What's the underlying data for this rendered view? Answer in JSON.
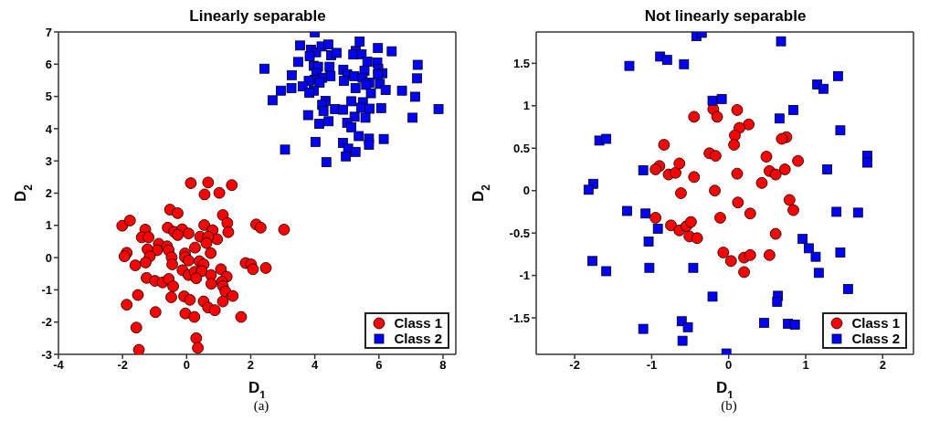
{
  "chart_data": [
    {
      "type": "scatter",
      "title": "Linearly separable",
      "xlabel": "D$_{1}$",
      "ylabel": "D$_{2}$",
      "xlim": [
        -4,
        8.4
      ],
      "ylim": [
        -3,
        7
      ],
      "xticks": [
        -4,
        -2,
        0,
        2,
        4,
        6,
        8
      ],
      "yticks": [
        -3,
        -2,
        -1,
        0,
        1,
        2,
        3,
        4,
        5,
        6,
        7
      ],
      "legend": "bottom right",
      "annotations": [
        "(a)"
      ],
      "series": [
        {
          "name": "Class 1",
          "color": "#ff0000",
          "marker": "circle",
          "x": [
            0.13,
            0.67,
            1.41,
            0.56,
            1.02,
            -0.52,
            -0.28,
            -2.01,
            -1.77,
            1.13,
            1.27,
            1.3,
            -1.29,
            -1.4,
            -1.19,
            -0.59,
            -0.39,
            -0.14,
            0.06,
            -0.28,
            0.55,
            0.81,
            0.95,
            0.42,
            0.67,
            2.17,
            2.31,
            3.04,
            -0.87,
            -0.92,
            -0.61,
            -0.56,
            -0.47,
            -1.22,
            -1.15,
            -1.87,
            -1.94,
            -1.6,
            -1.28,
            -0.45,
            0.26,
            0.62,
            0.75,
            -0.05,
            -0.05,
            0.06,
            0.4,
            0.53,
            -0.13,
            0.06,
            0.25,
            0.47,
            0.3,
            0.76,
            0.77,
            1.07,
            1.25,
            1.1,
            1.13,
            1.21,
            1.44,
            1.84,
            2.01,
            2.07,
            2.47,
            -1.25,
            -0.99,
            -0.75,
            -0.56,
            -0.42,
            -1.52,
            -1.87,
            -0.48,
            -0.08,
            0.1,
            0.53,
            0.67,
            0.88,
            1.13,
            -0.97,
            -0.04,
            0.24,
            1.7,
            -1.57,
            0.3,
            0.35,
            -1.49
          ],
          "values": [
            2.31,
            2.33,
            2.25,
            1.96,
            2.01,
            1.49,
            1.38,
            0.99,
            1.15,
            1.32,
            1.07,
            0.79,
            0.87,
            0.63,
            0.63,
            0.93,
            0.8,
            0.88,
            0.75,
            0.7,
            1.01,
            0.85,
            0.57,
            0.65,
            0.65,
            1.03,
            0.93,
            0.87,
            0.43,
            0.23,
            0.35,
            0.23,
            0.01,
            0.26,
            0.04,
            0.15,
            0.04,
            -0.24,
            -0.15,
            -0.21,
            0.31,
            0.45,
            0.14,
            0.13,
            0.01,
            -0.09,
            -0.11,
            -0.21,
            -0.39,
            -0.54,
            -0.44,
            -0.42,
            -0.64,
            -0.54,
            -0.81,
            -0.36,
            -0.59,
            -0.75,
            -0.88,
            -1.05,
            -1.19,
            -0.17,
            -0.21,
            -0.36,
            -0.32,
            -0.63,
            -0.72,
            -0.77,
            -0.66,
            -0.89,
            -1.16,
            -1.46,
            -1.23,
            -1.2,
            -1.31,
            -1.36,
            -1.55,
            -1.63,
            -1.36,
            -1.69,
            -1.73,
            -1.84,
            -1.84,
            -2.17,
            -2.5,
            -2.8,
            -2.86
          ]
        },
        {
          "name": "Class 2",
          "color": "#0000ff",
          "marker": "square",
          "x": [
            4.0,
            3.54,
            3.88,
            4.04,
            4.21,
            4.42,
            4.51,
            4.68,
            3.84,
            5.4,
            5.28,
            5.2,
            5.46,
            5.97,
            6.4,
            2.43,
            3.48,
            3.28,
            3.97,
            4.1,
            4.46,
            4.05,
            4.49,
            4.23,
            4.0,
            3.81,
            4.15,
            3.62,
            3.27,
            2.94,
            2.68,
            3.97,
            3.83,
            4.89,
            5.01,
            5.23,
            4.91,
            5.64,
            5.55,
            5.49,
            5.95,
            5.98,
            6.11,
            5.97,
            5.7,
            5.6,
            6.03,
            7.21,
            7.19,
            5.27,
            5.75,
            6.21,
            6.72,
            7.13,
            7.86,
            7.05,
            4.34,
            4.23,
            4.27,
            3.79,
            4.63,
            4.88,
            5.14,
            5.24,
            5.5,
            5.45,
            5.71,
            6.07,
            5.58,
            4.14,
            4.43,
            5.01,
            5.14,
            5.37,
            5.69,
            5.69,
            6.15,
            4.02,
            4.88,
            5.04,
            5.27,
            4.97,
            3.07,
            4.36
          ],
          "values": [
            6.99,
            6.58,
            6.45,
            6.37,
            6.55,
            6.61,
            6.28,
            6.35,
            6.25,
            6.7,
            6.41,
            6.3,
            6.31,
            6.5,
            6.4,
            5.86,
            6.07,
            5.66,
            5.95,
            5.92,
            5.92,
            5.72,
            5.63,
            5.58,
            5.52,
            5.48,
            5.43,
            5.31,
            5.26,
            5.18,
            4.88,
            5.18,
            5.11,
            5.83,
            5.69,
            5.63,
            5.48,
            6.08,
            5.8,
            5.58,
            6.05,
            5.85,
            5.72,
            5.69,
            5.43,
            5.36,
            5.39,
            5.98,
            5.56,
            5.26,
            5.1,
            5.2,
            5.18,
            4.99,
            4.61,
            4.34,
            4.86,
            4.74,
            4.55,
            4.42,
            4.61,
            4.59,
            4.85,
            4.37,
            4.82,
            4.65,
            4.62,
            4.64,
            4.34,
            4.15,
            4.23,
            4.18,
            4.04,
            3.77,
            3.69,
            3.5,
            3.68,
            3.59,
            3.56,
            3.38,
            3.28,
            3.14,
            3.35,
            2.96
          ]
        }
      ]
    },
    {
      "type": "scatter",
      "title": "Not linearly separable",
      "xlabel": "D$_{1}$",
      "ylabel": "D$_{2}$",
      "xlim": [
        -2.5,
        2.4
      ],
      "ylim": [
        -1.93,
        1.87
      ],
      "xticks": [
        -2,
        -1,
        0,
        1,
        2
      ],
      "yticks": [
        -1.5,
        -1,
        -0.5,
        0,
        0.5,
        1,
        1.5
      ],
      "legend": "bottom right",
      "annotations": [
        "(b)"
      ],
      "series": [
        {
          "name": "Class 1",
          "color": "#ff0000",
          "marker": "circle",
          "x": [
            -0.45,
            -0.2,
            -0.15,
            -0.84,
            -0.25,
            -0.17,
            -0.9,
            -0.95,
            -0.78,
            -0.69,
            -0.64,
            -0.45,
            -0.18,
            -0.62,
            0.11,
            0.26,
            0.14,
            0.08,
            0.07,
            0.75,
            0.69,
            0.49,
            0.9,
            0.11,
            0.53,
            0.61,
            0.73,
            0.43,
            -0.95,
            -0.11,
            -0.75,
            -0.64,
            -0.55,
            -0.49,
            -0.51,
            -0.41,
            -0.07,
            0.12,
            0.79,
            0.84,
            0.28,
            0.61,
            0.03,
            0.2,
            0.28,
            0.53,
            0.2
          ],
          "values": [
            0.87,
            0.96,
            0.87,
            0.54,
            0.44,
            0.41,
            0.29,
            0.25,
            0.19,
            0.21,
            0.32,
            0.16,
            0.0,
            -0.03,
            0.95,
            0.78,
            0.74,
            0.65,
            0.54,
            0.63,
            0.61,
            0.4,
            0.35,
            0.2,
            0.23,
            0.19,
            0.25,
            0.09,
            -0.32,
            -0.32,
            -0.41,
            -0.47,
            -0.42,
            -0.37,
            -0.54,
            -0.56,
            -0.73,
            -0.14,
            -0.11,
            -0.23,
            -0.27,
            -0.51,
            -0.83,
            -0.79,
            -0.76,
            -0.76,
            -0.96
          ]
        },
        {
          "name": "Class 2",
          "color": "#0000ff",
          "marker": "square",
          "x": [
            -1.29,
            -0.89,
            -0.8,
            -0.58,
            -0.42,
            -0.35,
            -0.21,
            -0.09,
            -1.68,
            -1.59,
            -1.11,
            -1.76,
            -1.82,
            0.68,
            1.42,
            1.15,
            1.23,
            0.84,
            0.66,
            1.45,
            1.8,
            1.8,
            1.28,
            -1.32,
            -1.08,
            -0.92,
            -1.04,
            -1.77,
            -1.59,
            -1.03,
            -0.46,
            -0.21,
            -0.61,
            -0.53,
            -1.11,
            -0.6,
            1.4,
            1.68,
            0.96,
            1.04,
            1.13,
            1.45,
            1.17,
            1.55,
            0.64,
            0.63,
            0.46,
            0.77,
            0.86,
            -0.03
          ],
          "values": [
            1.47,
            1.58,
            1.54,
            1.49,
            1.82,
            1.86,
            1.06,
            1.08,
            0.59,
            0.61,
            0.24,
            0.08,
            0.01,
            1.76,
            1.35,
            1.25,
            1.2,
            0.95,
            0.85,
            0.71,
            0.41,
            0.33,
            0.25,
            -0.24,
            -0.27,
            -0.45,
            -0.6,
            -0.83,
            -0.95,
            -0.91,
            -0.91,
            -1.25,
            -1.54,
            -1.61,
            -1.63,
            -1.77,
            -0.25,
            -0.26,
            -0.57,
            -0.68,
            -0.78,
            -0.73,
            -0.97,
            -1.16,
            -1.24,
            -1.31,
            -1.56,
            -1.57,
            -1.58,
            -1.92
          ]
        }
      ]
    }
  ]
}
